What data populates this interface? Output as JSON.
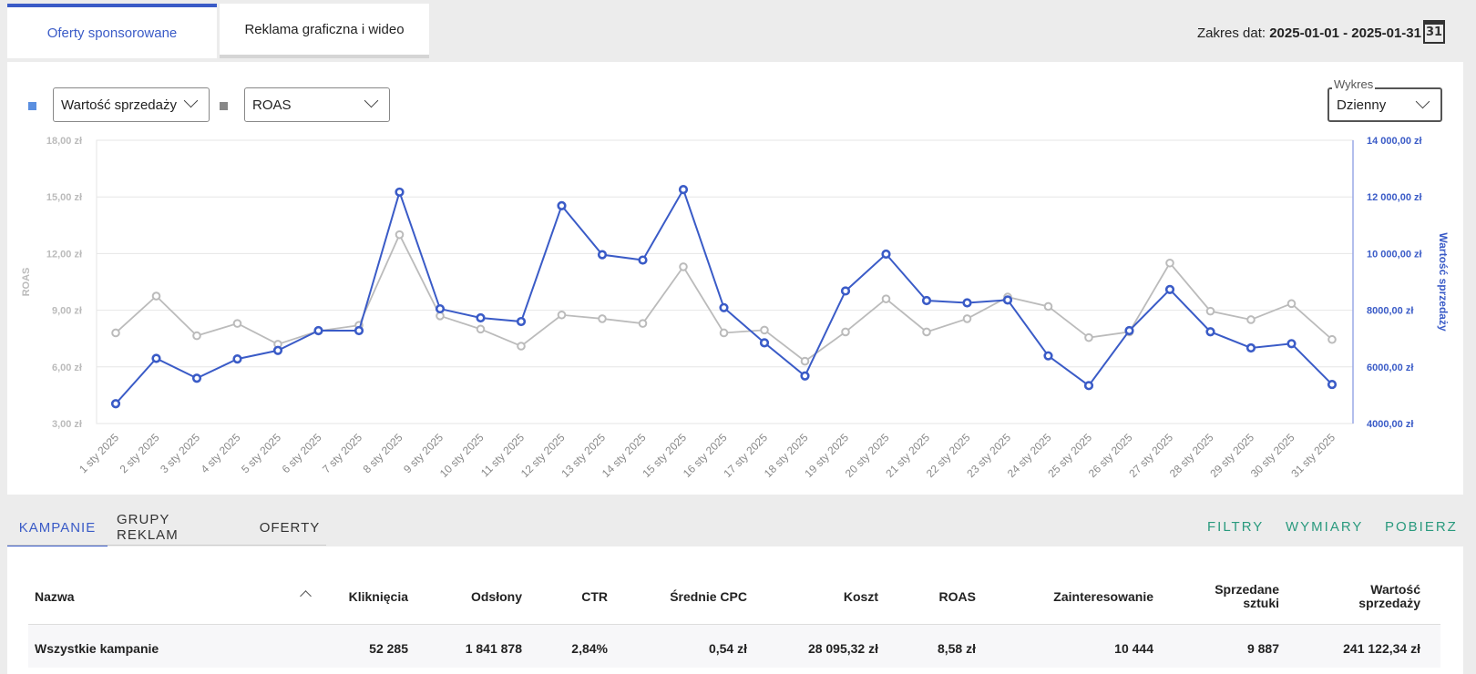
{
  "tabs": [
    {
      "label": "Oferty sponsorowane",
      "active": true
    },
    {
      "label": "Reklama graficzna i wideo",
      "active": false
    }
  ],
  "date_range": {
    "label": "Zakres dat:",
    "value": "2025-01-01 - 2025-01-31",
    "calendar_day": "31"
  },
  "controls": {
    "primary_metric": "Wartość sprzedaży",
    "secondary_metric": "ROAS",
    "chart_label": "Wykres",
    "chart_period": "Dzienny"
  },
  "colors": {
    "primary": "#3a5bc7",
    "secondary": "#bbbbbb",
    "primary_square": "#5b8fe0",
    "secondary_square": "#888888",
    "accent_green": "#2a9a7e"
  },
  "chart_data": {
    "type": "line",
    "x": [
      "1 sty 2025",
      "2 sty 2025",
      "3 sty 2025",
      "4 sty 2025",
      "5 sty 2025",
      "6 sty 2025",
      "7 sty 2025",
      "8 sty 2025",
      "9 sty 2025",
      "10 sty 2025",
      "11 sty 2025",
      "12 sty 2025",
      "13 sty 2025",
      "14 sty 2025",
      "15 sty 2025",
      "16 sty 2025",
      "17 sty 2025",
      "18 sty 2025",
      "19 sty 2025",
      "20 sty 2025",
      "21 sty 2025",
      "22 sty 2025",
      "23 sty 2025",
      "24 sty 2025",
      "25 sty 2025",
      "26 sty 2025",
      "27 sty 2025",
      "28 sty 2025",
      "29 sty 2025",
      "30 sty 2025",
      "31 sty 2025"
    ],
    "series": [
      {
        "name": "ROAS",
        "axis": "left",
        "color": "#bbbbbb",
        "values": [
          7.8,
          9.75,
          7.65,
          8.3,
          7.2,
          7.9,
          8.2,
          13.0,
          8.7,
          8.0,
          7.1,
          8.75,
          8.55,
          8.3,
          11.3,
          7.8,
          7.95,
          6.3,
          7.85,
          9.6,
          7.85,
          8.55,
          9.7,
          9.2,
          7.55,
          7.85,
          11.5,
          8.95,
          8.5,
          9.35,
          7.45
        ]
      },
      {
        "name": "Wartość sprzedaży",
        "axis": "right",
        "color": "#3a5bc7",
        "values": [
          4700,
          6300,
          5600,
          6280,
          6580,
          7280,
          7280,
          12170,
          8050,
          7730,
          7600,
          11690,
          9960,
          9770,
          12260,
          8090,
          6850,
          5680,
          8680,
          9980,
          8340,
          8260,
          8360,
          6390,
          5340,
          7280,
          8730,
          7240,
          6670,
          6820,
          5380
        ]
      }
    ],
    "left_axis": {
      "label": "ROAS",
      "range": [
        3,
        18
      ],
      "ticks": [
        "3,00 zł",
        "6,00 zł",
        "9,00 zł",
        "12,00 zł",
        "15,00 zł",
        "18,00 zł"
      ]
    },
    "right_axis": {
      "label": "Wartość sprzedaży",
      "range": [
        4000,
        14000
      ],
      "ticks": [
        "4000,00 zł",
        "6000,00 zł",
        "8000,00 zł",
        "10 000,00 zł",
        "12 000,00 zł",
        "14 000,00 zł"
      ]
    },
    "grid": true
  },
  "subtabs": [
    {
      "label": "KAMPANIE",
      "active": true
    },
    {
      "label": "GRUPY REKLAM",
      "active": false
    },
    {
      "label": "OFERTY",
      "active": false
    }
  ],
  "actions": [
    "FILTRY",
    "WYMIARY",
    "POBIERZ"
  ],
  "table": {
    "columns": [
      "Nazwa",
      "Kliknięcia",
      "Odsłony",
      "CTR",
      "Średnie CPC",
      "Koszt",
      "ROAS",
      "Zainteresowanie",
      "Sprzedane",
      "sztuki",
      "Wartość",
      "sprzedaży"
    ],
    "row": {
      "name": "Wszystkie kampanie",
      "clicks": "52 285",
      "impressions": "1 841 878",
      "ctr": "2,84%",
      "avg_cpc": "0,54 zł",
      "cost": "28 095,32 zł",
      "roas": "8,58 zł",
      "interest": "10 444",
      "units_sold": "9 887",
      "sales_value": "241 122,34 zł"
    }
  }
}
